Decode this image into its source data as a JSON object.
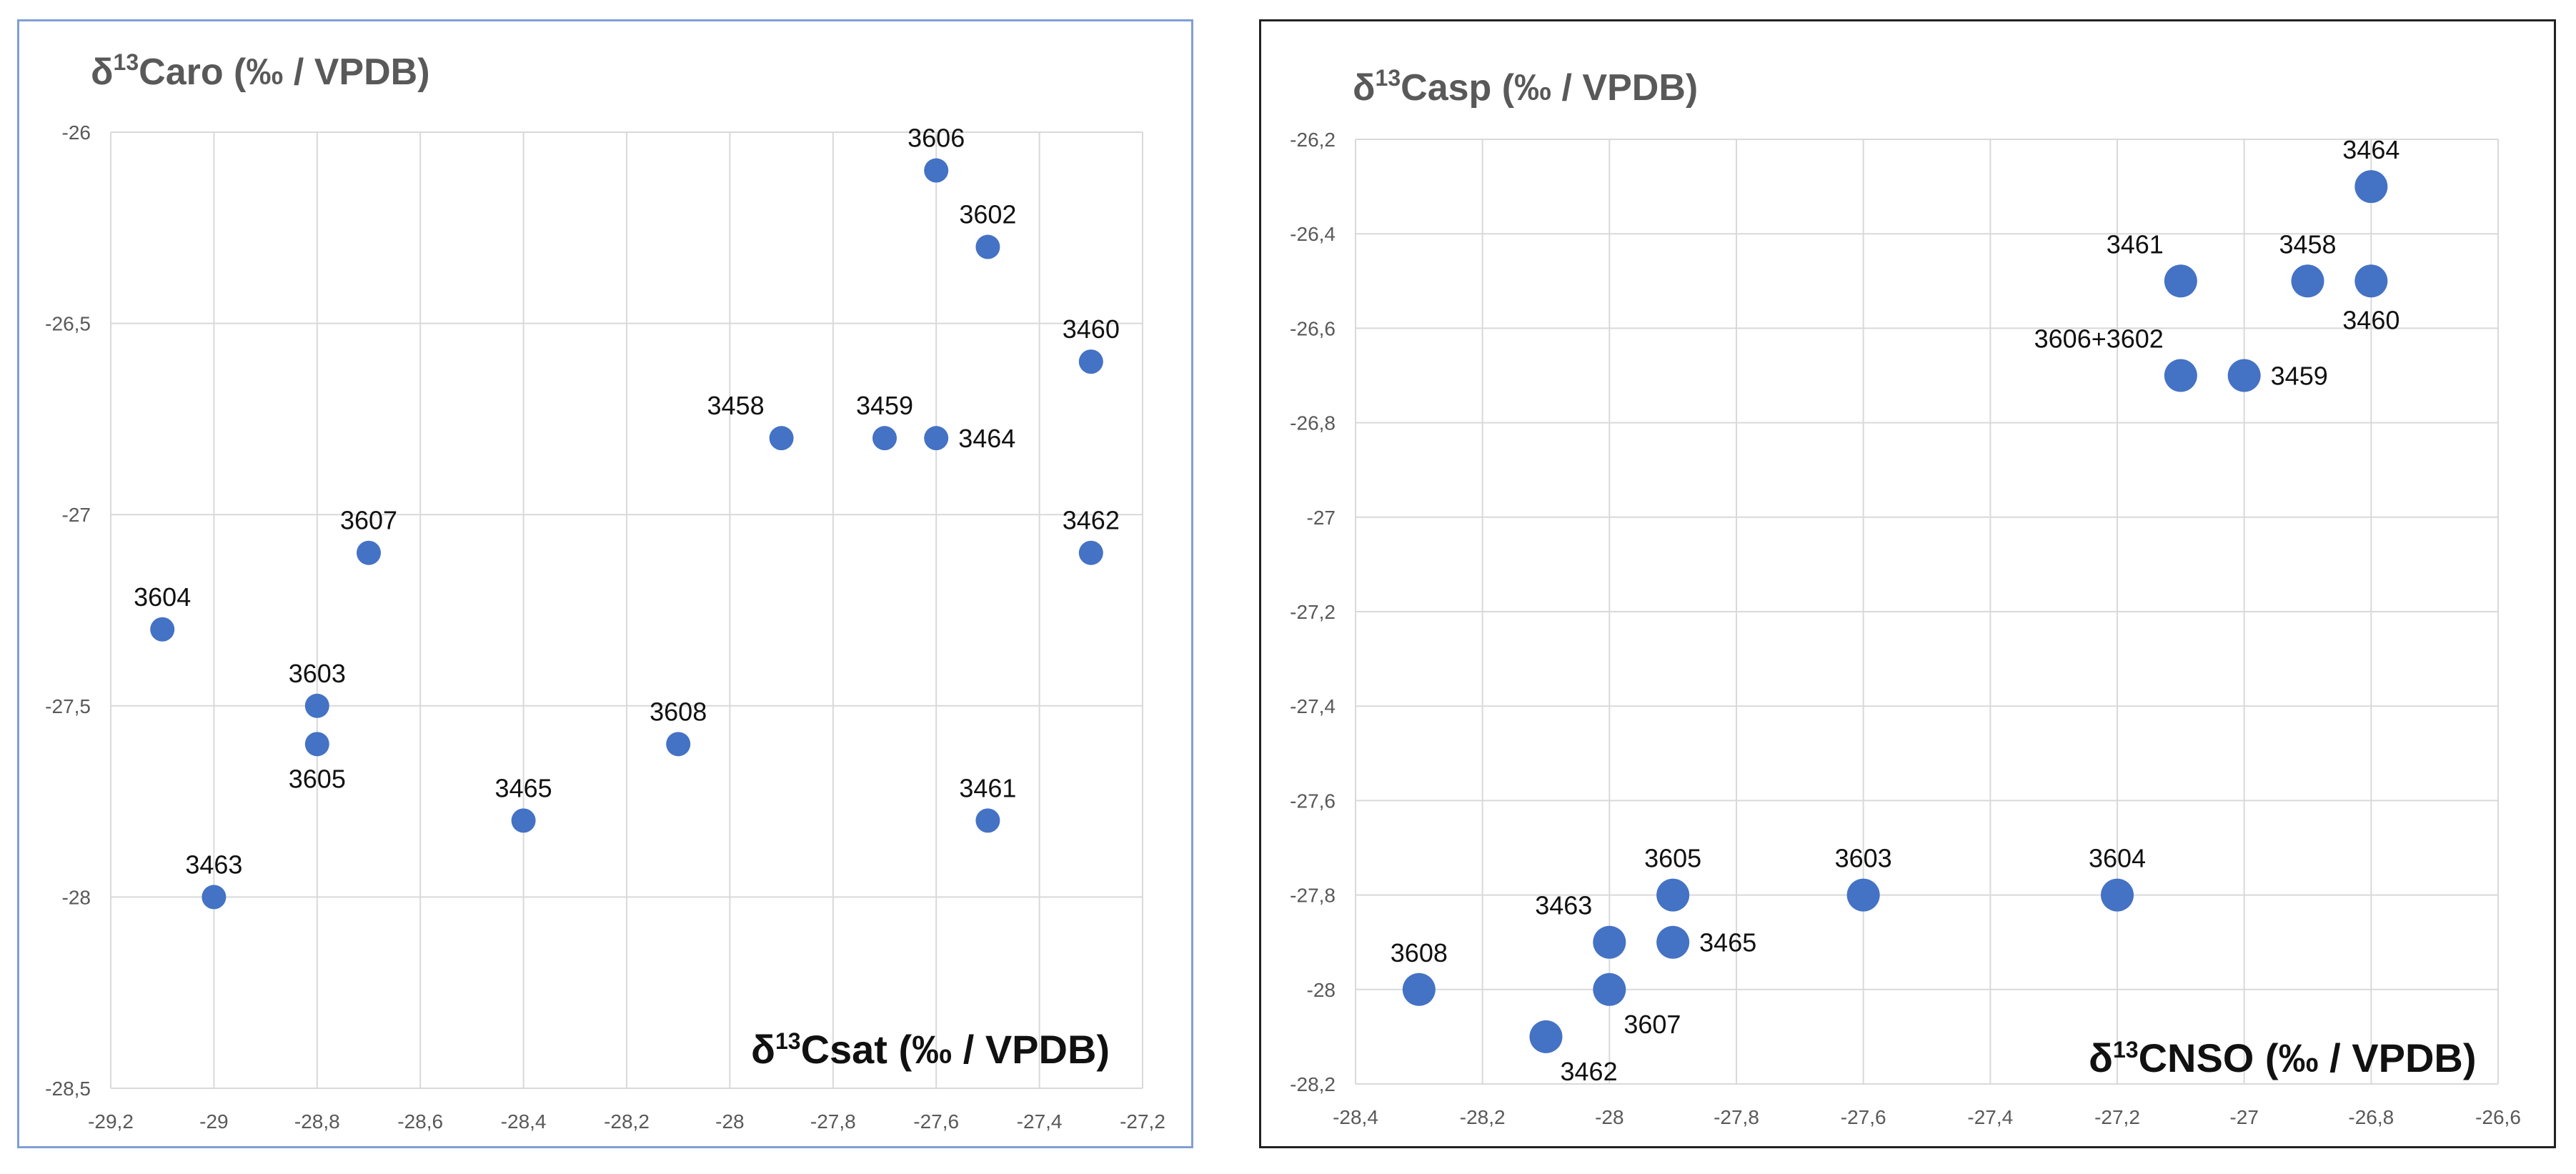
{
  "chart_data": [
    {
      "type": "scatter",
      "title": "",
      "ylabel": {
        "delta": "δ",
        "sup": "13",
        "rest": "Caro (‰ / VPDB)"
      },
      "xlabel": {
        "delta": "δ",
        "sup": "13",
        "rest": "Csat (‰ / VPDB)"
      },
      "xlim": [
        -29.2,
        -27.2
      ],
      "ylim": [
        -28.5,
        -26
      ],
      "xticks": [
        -29.2,
        -29,
        -28.8,
        -28.6,
        -28.4,
        -28.2,
        -28,
        -27.8,
        -27.6,
        -27.4,
        -27.2
      ],
      "yticks": [
        -26,
        -26.5,
        -27,
        -27.5,
        -28,
        -28.5
      ],
      "xtick_labels": [
        "-29,2",
        "-29",
        "-28,8",
        "-28,6",
        "-28,4",
        "-28,2",
        "-28",
        "-27,8",
        "-27,6",
        "-27,4",
        "-27,2"
      ],
      "ytick_labels": [
        "-26",
        "-26,5",
        "-27",
        "-27,5",
        "-28",
        "-28,5"
      ],
      "grid": true,
      "color": "#4472c4",
      "points": [
        {
          "label": "3606",
          "x": -27.6,
          "y": -26.1,
          "pos": "above"
        },
        {
          "label": "3602",
          "x": -27.5,
          "y": -26.3,
          "pos": "above"
        },
        {
          "label": "3460",
          "x": -27.3,
          "y": -26.6,
          "pos": "above"
        },
        {
          "label": "3458",
          "x": -27.9,
          "y": -26.8,
          "pos": "above-left"
        },
        {
          "label": "3459",
          "x": -27.7,
          "y": -26.8,
          "pos": "above"
        },
        {
          "label": "3464",
          "x": -27.6,
          "y": -26.8,
          "pos": "right"
        },
        {
          "label": "3607",
          "x": -28.7,
          "y": -27.1,
          "pos": "above"
        },
        {
          "label": "3462",
          "x": -27.3,
          "y": -27.1,
          "pos": "above"
        },
        {
          "label": "3604",
          "x": -29.1,
          "y": -27.3,
          "pos": "above"
        },
        {
          "label": "3603",
          "x": -28.8,
          "y": -27.5,
          "pos": "above"
        },
        {
          "label": "3605",
          "x": -28.8,
          "y": -27.6,
          "pos": "below"
        },
        {
          "label": "3608",
          "x": -28.1,
          "y": -27.6,
          "pos": "above"
        },
        {
          "label": "3465",
          "x": -28.4,
          "y": -27.8,
          "pos": "above"
        },
        {
          "label": "3461",
          "x": -27.5,
          "y": -27.8,
          "pos": "above"
        },
        {
          "label": "3463",
          "x": -29.0,
          "y": -28.0,
          "pos": "above"
        }
      ]
    },
    {
      "type": "scatter",
      "title": "",
      "ylabel": {
        "delta": "δ",
        "sup": "13",
        "rest": "Casp (‰ / VPDB)"
      },
      "xlabel": {
        "delta": "δ",
        "sup": "13",
        "rest": "CNSO (‰ / VPDB)"
      },
      "xlim": [
        -28.4,
        -26.6
      ],
      "ylim": [
        -28.2,
        -26.2
      ],
      "xticks": [
        -28.4,
        -28.2,
        -28,
        -27.8,
        -27.6,
        -27.4,
        -27.2,
        -27,
        -26.8,
        -26.6
      ],
      "yticks": [
        -26.2,
        -26.4,
        -26.6,
        -26.8,
        -27,
        -27.2,
        -27.4,
        -27.6,
        -27.8,
        -28,
        -28.2
      ],
      "xtick_labels": [
        "-28,4",
        "-28,2",
        "-28",
        "-27,8",
        "-27,6",
        "-27,4",
        "-27,2",
        "-27",
        "-26,8",
        "-26,6"
      ],
      "ytick_labels": [
        "-26,2",
        "-26,4",
        "-26,6",
        "-26,8",
        "-27",
        "-27,2",
        "-27,4",
        "-27,6",
        "-27,8",
        "-28",
        "-28,2"
      ],
      "grid": true,
      "color": "#4472c4",
      "points": [
        {
          "label": "3464",
          "x": -26.8,
          "y": -26.3,
          "pos": "above"
        },
        {
          "label": "3461",
          "x": -27.1,
          "y": -26.5,
          "pos": "above-left"
        },
        {
          "label": "3458",
          "x": -26.9,
          "y": -26.5,
          "pos": "above"
        },
        {
          "label": "3460",
          "x": -26.8,
          "y": -26.5,
          "pos": "below"
        },
        {
          "label": "3606+3602",
          "x": -27.1,
          "y": -26.7,
          "pos": "above-left"
        },
        {
          "label": "3459",
          "x": -27.0,
          "y": -26.7,
          "pos": "right"
        },
        {
          "label": "3605",
          "x": -27.9,
          "y": -27.8,
          "pos": "above"
        },
        {
          "label": "3603",
          "x": -27.6,
          "y": -27.8,
          "pos": "above"
        },
        {
          "label": "3604",
          "x": -27.2,
          "y": -27.8,
          "pos": "above"
        },
        {
          "label": "3463",
          "x": -28.0,
          "y": -27.9,
          "pos": "above-left"
        },
        {
          "label": "3465",
          "x": -27.9,
          "y": -27.9,
          "pos": "right"
        },
        {
          "label": "3608",
          "x": -28.3,
          "y": -28.0,
          "pos": "above"
        },
        {
          "label": "3607",
          "x": -28.0,
          "y": -28.0,
          "pos": "below-right"
        },
        {
          "label": "3462",
          "x": -28.1,
          "y": -28.1,
          "pos": "below-right"
        }
      ]
    }
  ]
}
